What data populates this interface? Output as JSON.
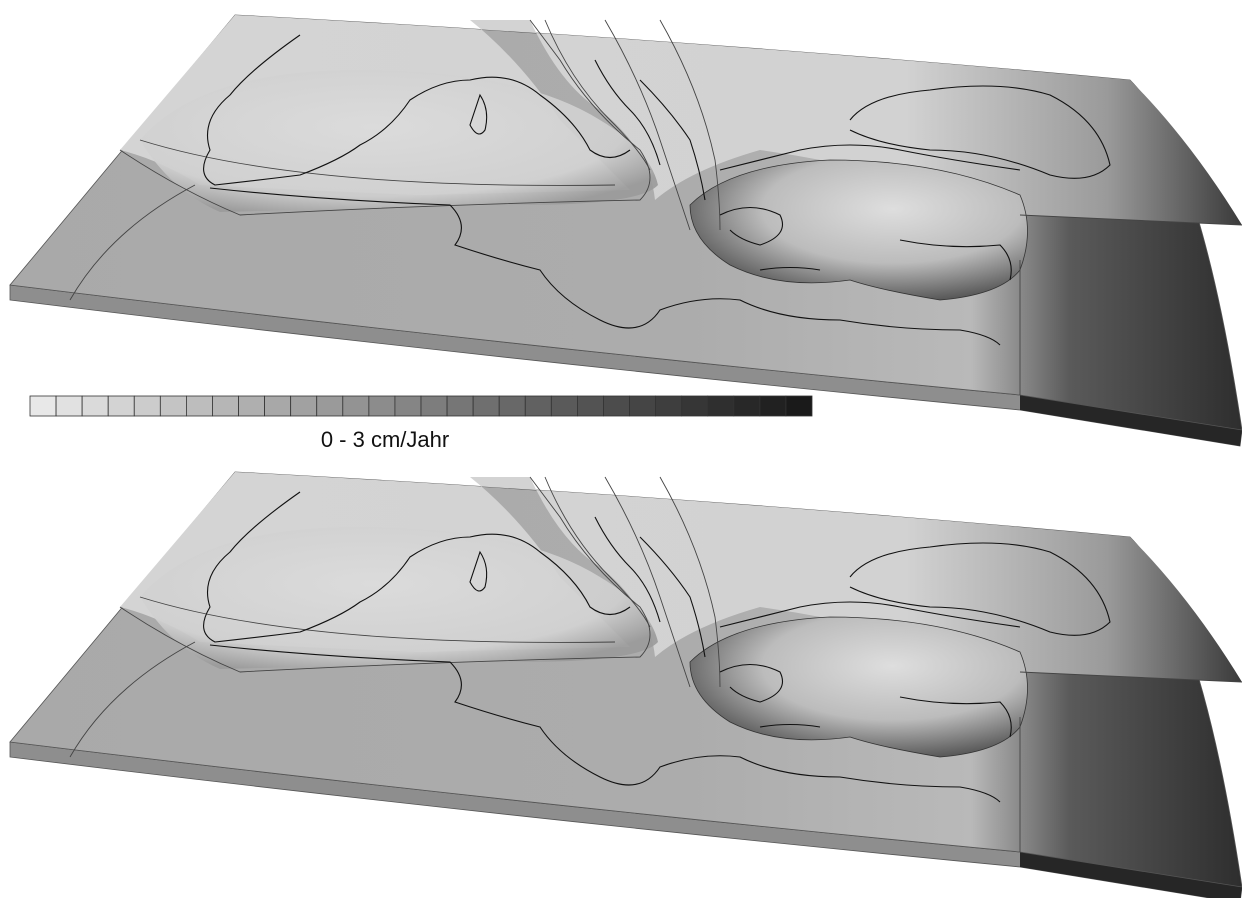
{
  "legend": {
    "label": "0 - 3 cm/Jahr"
  }
}
